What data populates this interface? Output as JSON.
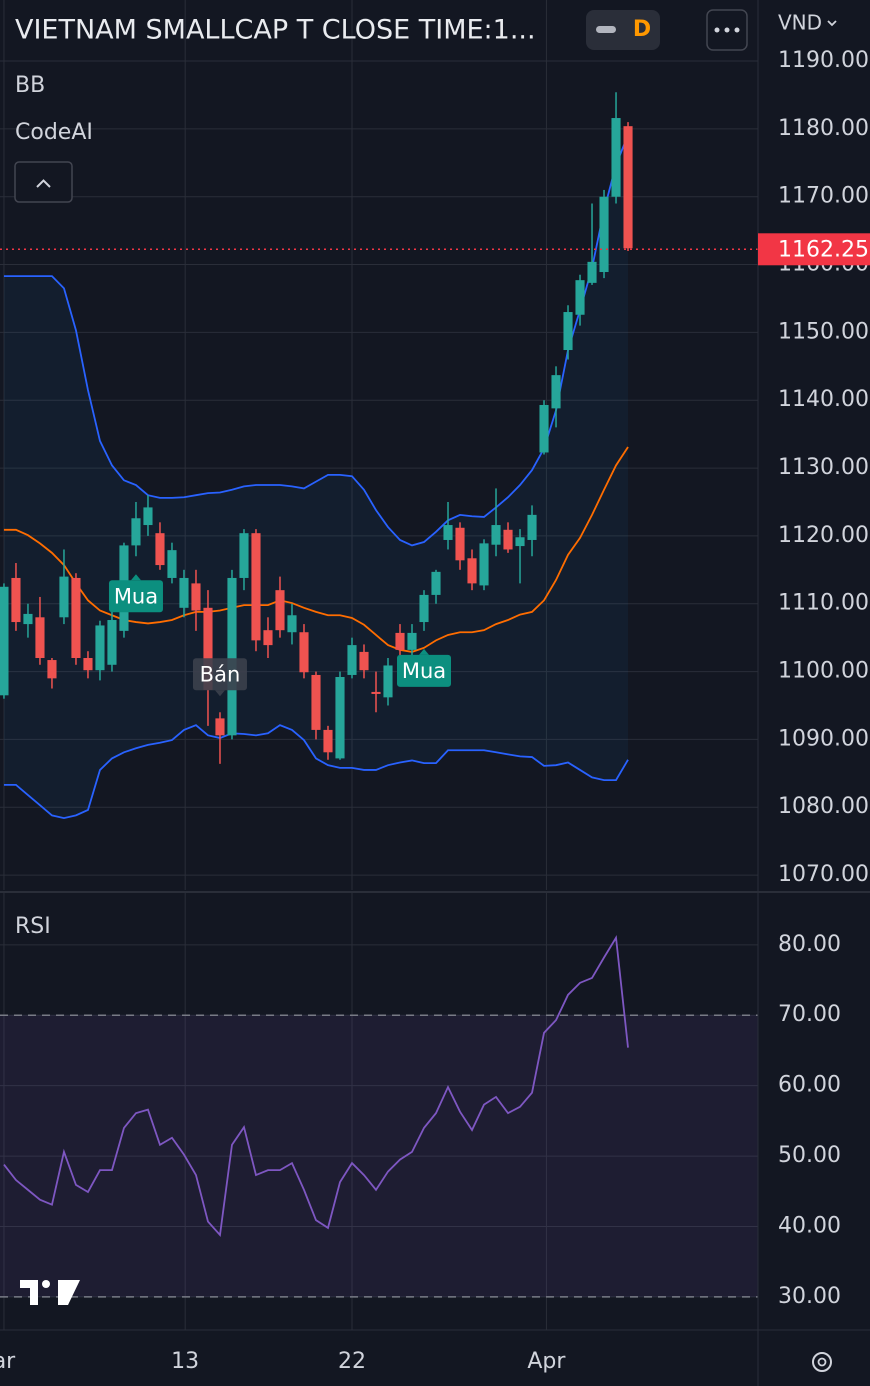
{
  "chart_data": {
    "type": "candlestick",
    "title": "VIETNAM SMALLCAP T CLOSE TIME:1...",
    "interval": "D",
    "currency": "VND",
    "overlay_labels": [
      "BB",
      "CodeAI"
    ],
    "up_color": "#26a69a",
    "down_color": "#ef5350",
    "candles": [
      [
        1096.5,
        1113,
        1096,
        1112.5
      ],
      [
        1113.8,
        1116,
        1106,
        1107.3
      ],
      [
        1107,
        1110,
        1105,
        1108.5
      ],
      [
        1108,
        1111,
        1101,
        1102
      ],
      [
        1101.7,
        1102,
        1097.5,
        1099
      ],
      [
        1108,
        1118,
        1107,
        1114
      ],
      [
        1113.8,
        1114.5,
        1101,
        1102
      ],
      [
        1102,
        1103,
        1099,
        1100.2
      ],
      [
        1100.2,
        1107.5,
        1098.7,
        1106.8
      ],
      [
        1101,
        1109,
        1100,
        1107.6
      ],
      [
        1106,
        1119,
        1105,
        1118.6
      ],
      [
        1118.6,
        1125,
        1117,
        1122.6
      ],
      [
        1121.6,
        1126,
        1120,
        1124.2
      ],
      [
        1120.4,
        1122,
        1115,
        1115.7
      ],
      [
        1113.8,
        1119,
        1113,
        1117.9
      ],
      [
        1109.4,
        1115,
        1108,
        1113.8
      ],
      [
        1113,
        1115,
        1106,
        1109
      ],
      [
        1109.4,
        1112,
        1092,
        1097.3
      ],
      [
        1093.1,
        1094,
        1086.4,
        1090.6
      ],
      [
        1090.6,
        1115,
        1090,
        1113.8
      ],
      [
        1113.8,
        1121,
        1112,
        1120.4
      ],
      [
        1120.4,
        1121,
        1103,
        1104.6
      ],
      [
        1106.1,
        1108,
        1102,
        1103.9
      ],
      [
        1112,
        1114,
        1105,
        1106.1
      ],
      [
        1105.8,
        1110,
        1104,
        1108.3
      ],
      [
        1105.8,
        1107,
        1099,
        1099.9
      ],
      [
        1099.5,
        1100,
        1090,
        1091.4
      ],
      [
        1091.4,
        1092,
        1087,
        1088.1
      ],
      [
        1087.2,
        1100,
        1087,
        1099.2
      ],
      [
        1099.5,
        1105,
        1099,
        1103.9
      ],
      [
        1102.9,
        1104,
        1099,
        1100.2
      ],
      [
        1097,
        1100,
        1094,
        1096.7
      ],
      [
        1096.2,
        1102,
        1095,
        1100.9
      ],
      [
        1105.7,
        1107,
        1102,
        1103.2
      ],
      [
        1103.2,
        1107,
        1102,
        1105.7
      ],
      [
        1107.3,
        1112,
        1106,
        1111.3
      ],
      [
        1111.3,
        1115,
        1110,
        1114.7
      ],
      [
        1119.4,
        1125,
        1118,
        1121.6
      ],
      [
        1121.2,
        1122,
        1115,
        1116.4
      ],
      [
        1116.7,
        1118,
        1112,
        1113
      ],
      [
        1112.7,
        1119.5,
        1112,
        1118.9
      ],
      [
        1118.7,
        1127,
        1117,
        1121.6
      ],
      [
        1120.9,
        1122,
        1117.5,
        1118
      ],
      [
        1118.5,
        1121,
        1113,
        1119.8
      ],
      [
        1119.4,
        1124.5,
        1117,
        1123.1
      ],
      [
        1132.3,
        1140,
        1132,
        1139.3
      ],
      [
        1138.8,
        1145,
        1136,
        1143.7
      ],
      [
        1147.4,
        1154,
        1146,
        1153
      ],
      [
        1152.6,
        1158.5,
        1151,
        1157.7
      ],
      [
        1157.3,
        1169,
        1157,
        1160.4
      ],
      [
        1158.9,
        1171,
        1158,
        1170
      ],
      [
        1170,
        1185.4,
        1169,
        1181.6
      ],
      [
        1180.4,
        1181,
        1162,
        1162.4
      ]
    ],
    "bollinger": {
      "upper_color": "#2962ff",
      "middle_color": "#ff6d00",
      "upper": [
        1158.3,
        1158.3,
        1158.3,
        1158.3,
        1158.3,
        1156.5,
        1150.3,
        1141.5,
        1134,
        1130.4,
        1128.2,
        1127.5,
        1126,
        1125.6,
        1125.6,
        1125.7,
        1126,
        1126.3,
        1126.4,
        1126.8,
        1127.3,
        1127.5,
        1127.5,
        1127.5,
        1127.3,
        1127,
        1128,
        1129,
        1129,
        1128.8,
        1126.8,
        1123.8,
        1121.3,
        1119.4,
        1118.6,
        1119.1,
        1120.6,
        1122.3,
        1123.1,
        1122.9,
        1122.8,
        1124.2,
        1125.7,
        1127.5,
        1129.7,
        1132.9,
        1138.5,
        1147.4,
        1153.3,
        1159.5,
        1168,
        1174.7,
        1179.1
      ],
      "middle": [
        1120.9,
        1120.9,
        1120.1,
        1118.9,
        1117.5,
        1115.7,
        1113,
        1110.5,
        1109,
        1108.3,
        1107.6,
        1107.3,
        1107.1,
        1107.3,
        1107.6,
        1108.3,
        1108.8,
        1108.8,
        1109,
        1109.4,
        1109.8,
        1109.8,
        1109.8,
        1110.5,
        1110.1,
        1109.4,
        1108.8,
        1108.3,
        1108.3,
        1107.9,
        1106.9,
        1105.4,
        1103.9,
        1103.2,
        1102.9,
        1103.5,
        1104.6,
        1105.4,
        1105.8,
        1105.8,
        1106.1,
        1107,
        1107.6,
        1108.4,
        1108.8,
        1110.5,
        1113.5,
        1117.2,
        1119.7,
        1123.1,
        1126.8,
        1130.4,
        1133.1
      ],
      "lower": [
        1083.3,
        1083.3,
        1081.8,
        1080.3,
        1078.8,
        1078.4,
        1078.8,
        1079.6,
        1085.5,
        1087.2,
        1088.1,
        1088.7,
        1089.2,
        1089.5,
        1089.9,
        1091.4,
        1092.1,
        1090.6,
        1090.2,
        1090.9,
        1090.8,
        1090.6,
        1090.9,
        1092.1,
        1091.4,
        1089.9,
        1087.2,
        1086.2,
        1085.8,
        1085.8,
        1085.5,
        1085.5,
        1086.2,
        1086.6,
        1086.9,
        1086.5,
        1086.5,
        1088.4,
        1088.4,
        1088.4,
        1088.4,
        1088.1,
        1087.8,
        1087.5,
        1087.4,
        1086.1,
        1086.2,
        1086.6,
        1085.5,
        1084.4,
        1084,
        1084,
        1087
      ]
    },
    "signals": [
      {
        "label": "Mua",
        "index": 11,
        "side": "buy"
      },
      {
        "label": "Bán",
        "index": 18,
        "side": "sell"
      },
      {
        "label": "Mua",
        "index": 35,
        "side": "buy"
      }
    ],
    "last_price": 1162.25,
    "xlim": [
      -0.33,
      62.83
    ],
    "xticks": [
      {
        "value": 0,
        "label": "ar"
      },
      {
        "value": 15.1,
        "label": "13"
      },
      {
        "value": 29,
        "label": "22"
      },
      {
        "value": 45.2,
        "label": "Apr"
      }
    ],
    "ylim": [
      1067.8,
      1199
    ],
    "yticks": [
      {
        "value": 1190,
        "label": "1190.00"
      },
      {
        "value": 1180,
        "label": "1180.00"
      },
      {
        "value": 1170,
        "label": "1170.00"
      },
      {
        "value": 1160,
        "label": "1160.00"
      },
      {
        "value": 1150,
        "label": "1150.00"
      },
      {
        "value": 1140,
        "label": "1140.00"
      },
      {
        "value": 1130,
        "label": "1130.00"
      },
      {
        "value": 1120,
        "label": "1120.00"
      },
      {
        "value": 1110,
        "label": "1110.00"
      },
      {
        "value": 1100,
        "label": "1100.00"
      },
      {
        "value": 1090,
        "label": "1090.00"
      },
      {
        "value": 1080,
        "label": "1080.00"
      },
      {
        "value": 1070,
        "label": "1070.00"
      }
    ],
    "grid": true,
    "rsi": {
      "title": "RSI",
      "color": "#7e57c2",
      "values": [
        48.8,
        46.6,
        45.2,
        43.8,
        43.1,
        50.6,
        45.9,
        44.9,
        48,
        48,
        54,
        56.1,
        56.6,
        51.6,
        52.6,
        50.2,
        47.3,
        40.7,
        38.8,
        51.6,
        54.1,
        47.3,
        48,
        48,
        49,
        45.2,
        40.9,
        39.8,
        46.3,
        49,
        47.3,
        45.2,
        47.8,
        49.5,
        50.6,
        54,
        56.1,
        59.8,
        56.3,
        53.7,
        57.3,
        58.4,
        56.1,
        57,
        59,
        67.5,
        69.3,
        72.9,
        74.6,
        75.3,
        78.2,
        81,
        65.4
      ],
      "bands": [
        70,
        30
      ],
      "ylim": [
        25.3,
        87.5
      ],
      "yticks": [
        {
          "value": 80,
          "label": "80.00"
        },
        {
          "value": 70,
          "label": "70.00"
        },
        {
          "value": 60,
          "label": "60.00"
        },
        {
          "value": 50,
          "label": "50.00"
        },
        {
          "value": 40,
          "label": "40.00"
        },
        {
          "value": 30,
          "label": "30.00"
        }
      ]
    }
  }
}
